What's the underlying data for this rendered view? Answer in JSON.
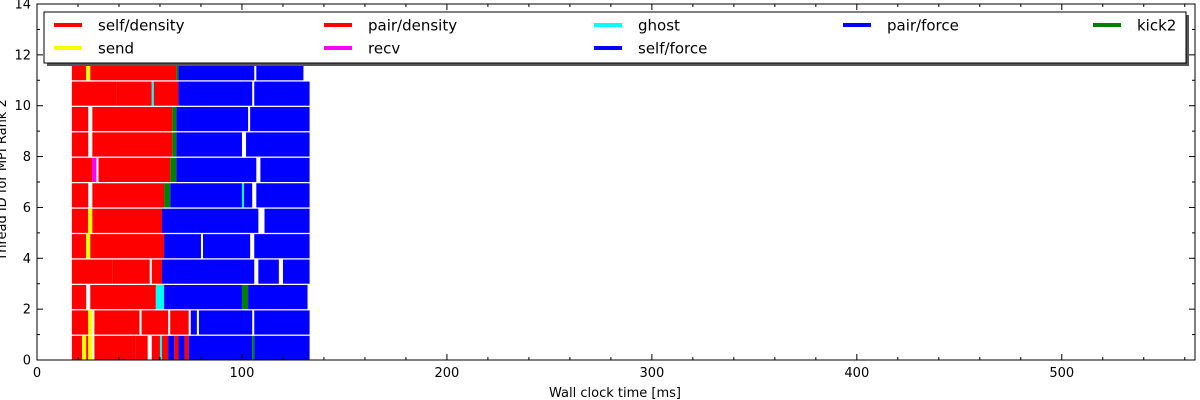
{
  "chart_data": {
    "type": "bar",
    "orientation": "horizontal-timeline",
    "title": "",
    "xlabel": "Wall clock time [ms]",
    "ylabel": "Thread ID for MPI Rank 2",
    "xlim": [
      0,
      565
    ],
    "ylim": [
      0,
      14
    ],
    "xticks": [
      0,
      100,
      200,
      300,
      400,
      500
    ],
    "yticks": [
      0,
      2,
      4,
      6,
      8,
      10,
      12,
      14
    ],
    "grid": false,
    "legend_position": "top",
    "legend": [
      {
        "name": "self/density",
        "color": "#ff0000"
      },
      {
        "name": "pair/density",
        "color": "#ff0000"
      },
      {
        "name": "ghost",
        "color": "#00ffff"
      },
      {
        "name": "pair/force",
        "color": "#0000ff"
      },
      {
        "name": "kick2",
        "color": "#008000"
      },
      {
        "name": "send",
        "color": "#ffff00"
      },
      {
        "name": "recv",
        "color": "#ff00ff"
      },
      {
        "name": "self/force",
        "color": "#0000ff"
      }
    ],
    "threads": [
      {
        "id": 0,
        "tasks": [
          {
            "task": "self/density",
            "start": 17,
            "end": 22
          },
          {
            "task": "send",
            "start": 22,
            "end": 24
          },
          {
            "task": "self/density",
            "start": 24,
            "end": 25
          },
          {
            "task": "send",
            "start": 25,
            "end": 27
          },
          {
            "task": "self/density",
            "start": 28,
            "end": 48
          },
          {
            "task": "pair/density",
            "start": 48,
            "end": 54
          },
          {
            "task": "pair/density",
            "start": 56,
            "end": 60
          },
          {
            "task": "ghost",
            "start": 60,
            "end": 61
          },
          {
            "task": "pair/density",
            "start": 61,
            "end": 64
          },
          {
            "task": "pair/force",
            "start": 64,
            "end": 67
          },
          {
            "task": "pair/density",
            "start": 67,
            "end": 69
          },
          {
            "task": "pair/force",
            "start": 69,
            "end": 72
          },
          {
            "task": "pair/density",
            "start": 72,
            "end": 74
          },
          {
            "task": "pair/force",
            "start": 74,
            "end": 105
          },
          {
            "task": "kick2",
            "start": 105,
            "end": 106
          },
          {
            "task": "pair/force",
            "start": 106,
            "end": 133
          }
        ]
      },
      {
        "id": 1,
        "tasks": [
          {
            "task": "self/density",
            "start": 17,
            "end": 25
          },
          {
            "task": "send",
            "start": 25,
            "end": 27
          },
          {
            "task": "self/density",
            "start": 28,
            "end": 50
          },
          {
            "task": "pair/density",
            "start": 51,
            "end": 64
          },
          {
            "task": "pair/density",
            "start": 65,
            "end": 74
          },
          {
            "task": "pair/force",
            "start": 75,
            "end": 78
          },
          {
            "task": "pair/force",
            "start": 79,
            "end": 105
          },
          {
            "task": "pair/force",
            "start": 106,
            "end": 133
          }
        ]
      },
      {
        "id": 2,
        "tasks": [
          {
            "task": "self/density",
            "start": 17,
            "end": 24
          },
          {
            "task": "self/density",
            "start": 26,
            "end": 58
          },
          {
            "task": "ghost",
            "start": 58,
            "end": 60
          },
          {
            "task": "ghost",
            "start": 60,
            "end": 62
          },
          {
            "task": "pair/force",
            "start": 62,
            "end": 100
          },
          {
            "task": "kick2",
            "start": 100,
            "end": 103
          },
          {
            "task": "pair/force",
            "start": 103,
            "end": 132
          }
        ]
      },
      {
        "id": 3,
        "tasks": [
          {
            "task": "self/density",
            "start": 17,
            "end": 37
          },
          {
            "task": "pair/density",
            "start": 37,
            "end": 55
          },
          {
            "task": "pair/density",
            "start": 56,
            "end": 61
          },
          {
            "task": "pair/force",
            "start": 61,
            "end": 106
          },
          {
            "task": "pair/force",
            "start": 108,
            "end": 118
          },
          {
            "task": "pair/force",
            "start": 120,
            "end": 133
          }
        ]
      },
      {
        "id": 4,
        "tasks": [
          {
            "task": "self/density",
            "start": 17,
            "end": 24
          },
          {
            "task": "send",
            "start": 24,
            "end": 26
          },
          {
            "task": "self/density",
            "start": 26,
            "end": 62
          },
          {
            "task": "pair/force",
            "start": 62,
            "end": 80
          },
          {
            "task": "pair/force",
            "start": 81,
            "end": 104
          },
          {
            "task": "pair/force",
            "start": 106,
            "end": 133
          }
        ]
      },
      {
        "id": 5,
        "tasks": [
          {
            "task": "self/density",
            "start": 17,
            "end": 25
          },
          {
            "task": "send",
            "start": 25,
            "end": 27
          },
          {
            "task": "self/density",
            "start": 27,
            "end": 61
          },
          {
            "task": "pair/force",
            "start": 61,
            "end": 108
          },
          {
            "task": "pair/force",
            "start": 111,
            "end": 133
          }
        ]
      },
      {
        "id": 6,
        "tasks": [
          {
            "task": "self/density",
            "start": 17,
            "end": 25
          },
          {
            "task": "self/density",
            "start": 27,
            "end": 62
          },
          {
            "task": "kick2",
            "start": 62,
            "end": 65
          },
          {
            "task": "pair/force",
            "start": 65,
            "end": 100
          },
          {
            "task": "ghost",
            "start": 100,
            "end": 101
          },
          {
            "task": "pair/force",
            "start": 101,
            "end": 105
          },
          {
            "task": "pair/force",
            "start": 107,
            "end": 133
          }
        ]
      },
      {
        "id": 7,
        "tasks": [
          {
            "task": "self/density",
            "start": 17,
            "end": 27
          },
          {
            "task": "recv",
            "start": 27,
            "end": 29
          },
          {
            "task": "self/density",
            "start": 30,
            "end": 65
          },
          {
            "task": "kick2",
            "start": 65,
            "end": 68
          },
          {
            "task": "pair/force",
            "start": 68,
            "end": 107
          },
          {
            "task": "pair/force",
            "start": 109,
            "end": 133
          }
        ]
      },
      {
        "id": 8,
        "tasks": [
          {
            "task": "self/density",
            "start": 17,
            "end": 25
          },
          {
            "task": "self/density",
            "start": 27,
            "end": 66
          },
          {
            "task": "kick2",
            "start": 66,
            "end": 68
          },
          {
            "task": "pair/force",
            "start": 68,
            "end": 100
          },
          {
            "task": "pair/force",
            "start": 102,
            "end": 133
          }
        ]
      },
      {
        "id": 9,
        "tasks": [
          {
            "task": "self/density",
            "start": 17,
            "end": 25
          },
          {
            "task": "self/density",
            "start": 27,
            "end": 66
          },
          {
            "task": "kick2",
            "start": 66,
            "end": 68
          },
          {
            "task": "pair/force",
            "start": 68,
            "end": 103
          },
          {
            "task": "pair/force",
            "start": 104,
            "end": 133
          }
        ]
      },
      {
        "id": 10,
        "tasks": [
          {
            "task": "self/density",
            "start": 17,
            "end": 39
          },
          {
            "task": "pair/density",
            "start": 39,
            "end": 56
          },
          {
            "task": "ghost",
            "start": 56,
            "end": 57
          },
          {
            "task": "pair/density",
            "start": 57,
            "end": 69
          },
          {
            "task": "pair/force",
            "start": 69,
            "end": 105
          },
          {
            "task": "pair/force",
            "start": 106,
            "end": 133
          }
        ]
      },
      {
        "id": 11,
        "tasks": [
          {
            "task": "self/density",
            "start": 17,
            "end": 24
          },
          {
            "task": "send",
            "start": 24,
            "end": 26
          },
          {
            "task": "self/density",
            "start": 26,
            "end": 68
          },
          {
            "task": "kick2",
            "start": 68,
            "end": 69
          },
          {
            "task": "pair/force",
            "start": 69,
            "end": 106
          },
          {
            "task": "pair/force",
            "start": 107,
            "end": 130
          }
        ]
      }
    ]
  }
}
